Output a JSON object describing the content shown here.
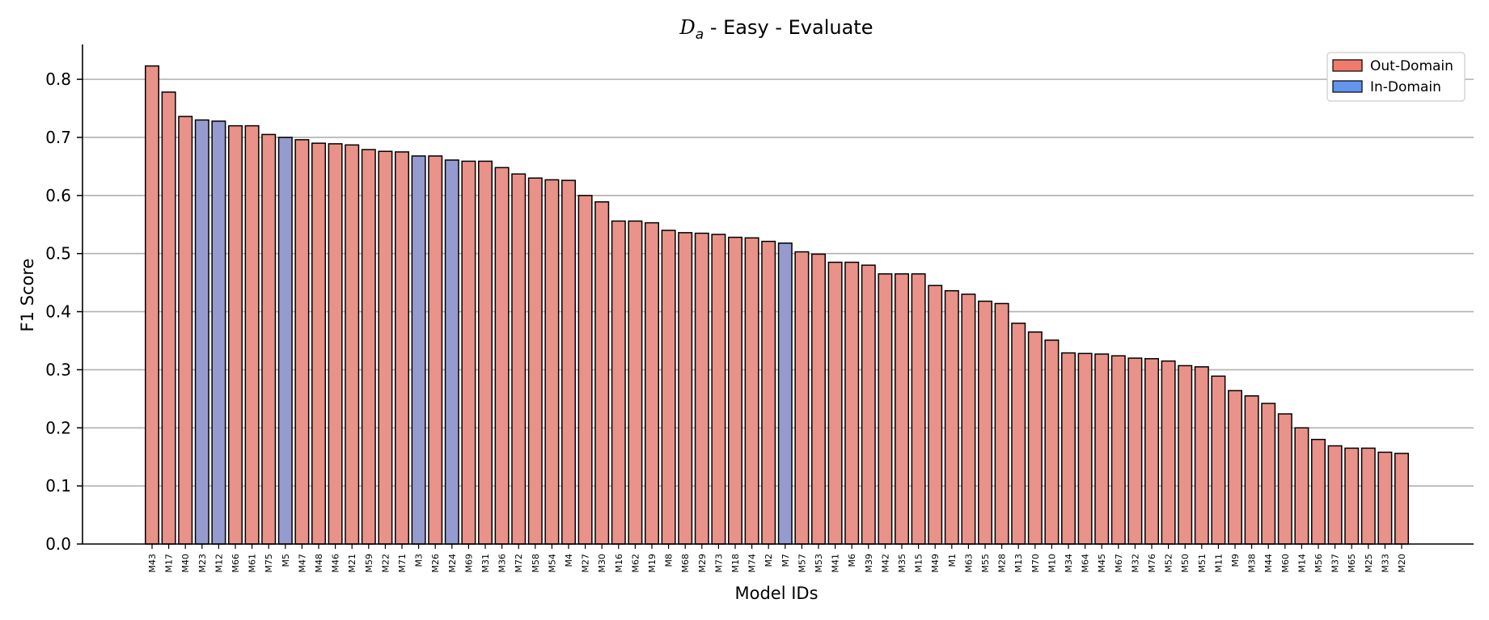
{
  "chart_data": {
    "type": "bar",
    "title_main": "D",
    "title_sub": "a",
    "title_rest": " - Easy - Evaluate",
    "xlabel": "Model IDs",
    "ylabel": "F1 Score",
    "ylim": [
      0,
      0.86
    ],
    "yticks": [
      0.0,
      0.1,
      0.2,
      0.3,
      0.4,
      0.5,
      0.6,
      0.7,
      0.8
    ],
    "ytick_labels": [
      "0.0",
      "0.1",
      "0.2",
      "0.3",
      "0.4",
      "0.5",
      "0.6",
      "0.7",
      "0.8"
    ],
    "grid": "y",
    "legend_position": "top-right",
    "legend": [
      {
        "label": "Out-Domain",
        "color": "#f07b6b"
      },
      {
        "label": "In-Domain",
        "color": "#6495ed"
      }
    ],
    "colors": {
      "out": "#e9928a",
      "in": "#959bce",
      "edge": "#000000",
      "grid": "#b0b0b0"
    },
    "categories": [
      "M43",
      "M17",
      "M40",
      "M23",
      "M12",
      "M66",
      "M61",
      "M75",
      "M5",
      "M47",
      "M48",
      "M46",
      "M21",
      "M59",
      "M22",
      "M71",
      "M3",
      "M26",
      "M24",
      "M69",
      "M31",
      "M36",
      "M72",
      "M58",
      "M54",
      "M4",
      "M27",
      "M30",
      "M16",
      "M62",
      "M19",
      "M8",
      "M68",
      "M29",
      "M73",
      "M18",
      "M74",
      "M2",
      "M7",
      "M57",
      "M53",
      "M41",
      "M6",
      "M39",
      "M42",
      "M35",
      "M15",
      "M49",
      "M1",
      "M63",
      "M55",
      "M28",
      "M13",
      "M70",
      "M10",
      "M34",
      "M64",
      "M45",
      "M67",
      "M32",
      "M76",
      "M52",
      "M50",
      "M51",
      "M11",
      "M9",
      "M38",
      "M44",
      "M60",
      "M14",
      "M56",
      "M37",
      "M65",
      "M25",
      "M33",
      "M20"
    ],
    "values": [
      0.823,
      0.778,
      0.736,
      0.73,
      0.728,
      0.72,
      0.72,
      0.705,
      0.7,
      0.696,
      0.69,
      0.689,
      0.687,
      0.679,
      0.676,
      0.675,
      0.668,
      0.668,
      0.661,
      0.659,
      0.659,
      0.648,
      0.637,
      0.63,
      0.627,
      0.626,
      0.6,
      0.589,
      0.556,
      0.556,
      0.553,
      0.54,
      0.536,
      0.535,
      0.533,
      0.528,
      0.527,
      0.521,
      0.518,
      0.503,
      0.499,
      0.485,
      0.485,
      0.48,
      0.465,
      0.465,
      0.465,
      0.445,
      0.436,
      0.43,
      0.418,
      0.414,
      0.38,
      0.365,
      0.351,
      0.329,
      0.328,
      0.327,
      0.324,
      0.32,
      0.319,
      0.315,
      0.307,
      0.305,
      0.289,
      0.264,
      0.255,
      0.242,
      0.224,
      0.2,
      0.18,
      0.169,
      0.165,
      0.165,
      0.158,
      0.156
    ],
    "domain": [
      "out",
      "out",
      "out",
      "in",
      "in",
      "out",
      "out",
      "out",
      "in",
      "out",
      "out",
      "out",
      "out",
      "out",
      "out",
      "out",
      "in",
      "out",
      "in",
      "out",
      "out",
      "out",
      "out",
      "out",
      "out",
      "out",
      "out",
      "out",
      "out",
      "out",
      "out",
      "out",
      "out",
      "out",
      "out",
      "out",
      "out",
      "out",
      "in",
      "out",
      "out",
      "out",
      "out",
      "out",
      "out",
      "out",
      "out",
      "out",
      "out",
      "out",
      "out",
      "out",
      "out",
      "out",
      "out",
      "out",
      "out",
      "out",
      "out",
      "out",
      "out",
      "out",
      "out",
      "out",
      "out",
      "out",
      "out",
      "out",
      "out",
      "out",
      "out",
      "out",
      "out",
      "out",
      "out",
      "out"
    ]
  }
}
